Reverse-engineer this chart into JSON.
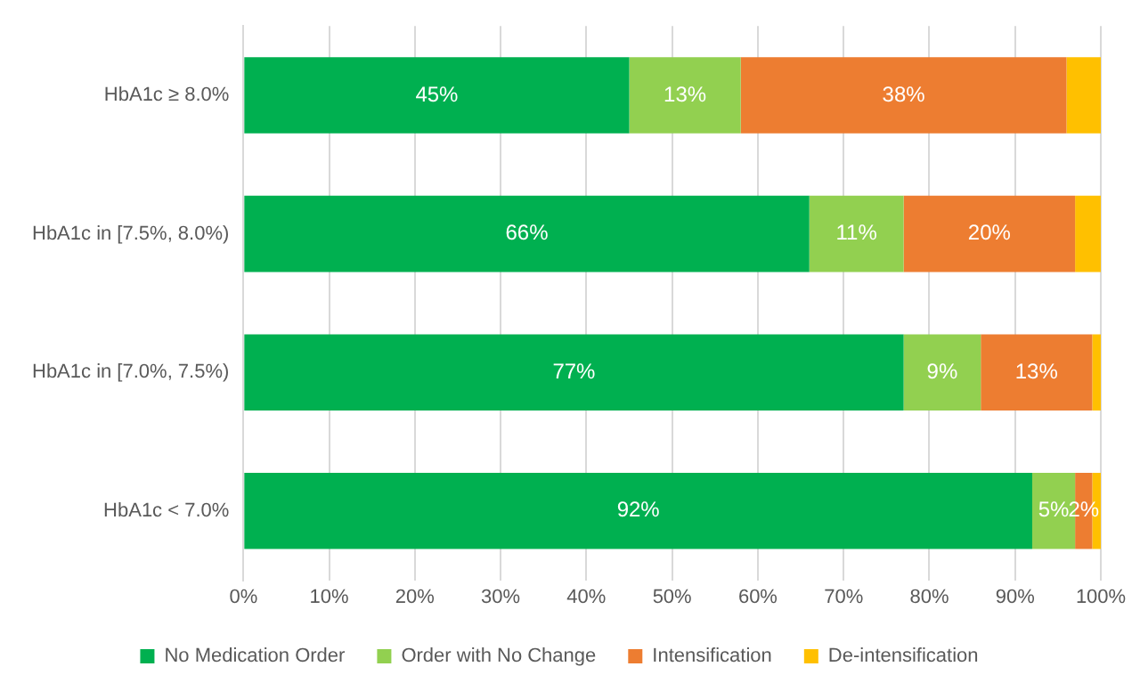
{
  "chart_data": {
    "type": "bar",
    "orientation": "horizontal",
    "stacked": true,
    "categories": [
      "HbA1c ≥ 8.0%",
      "HbA1c in [7.5%, 8.0%)",
      "HbA1c in [7.0%, 7.5%)",
      "HbA1c < 7.0%"
    ],
    "series": [
      {
        "name": "No Medication Order",
        "color": "#00b050",
        "values": [
          45,
          66,
          77,
          92
        ],
        "value_labels": [
          "45%",
          "66%",
          "77%",
          "92%"
        ]
      },
      {
        "name": "Order with No Change",
        "color": "#92d050",
        "values": [
          13,
          11,
          9,
          5
        ],
        "value_labels": [
          "13%",
          "11%",
          "9%",
          "5%"
        ]
      },
      {
        "name": "Intensification",
        "color": "#ed7d31",
        "values": [
          38,
          20,
          13,
          2
        ],
        "value_labels": [
          "38%",
          "20%",
          "13%",
          "2%"
        ]
      },
      {
        "name": "De-intensification",
        "color": "#ffc000",
        "values": [
          4,
          3,
          1,
          1
        ],
        "value_labels": [
          null,
          null,
          null,
          null
        ]
      }
    ],
    "xlim": [
      0,
      100
    ],
    "xticks": [
      {
        "value": 0,
        "label": "0%"
      },
      {
        "value": 10,
        "label": "10%"
      },
      {
        "value": 20,
        "label": "20%"
      },
      {
        "value": 30,
        "label": "30%"
      },
      {
        "value": 40,
        "label": "40%"
      },
      {
        "value": 50,
        "label": "50%"
      },
      {
        "value": 60,
        "label": "60%"
      },
      {
        "value": 70,
        "label": "70%"
      },
      {
        "value": 80,
        "label": "80%"
      },
      {
        "value": 90,
        "label": "90%"
      },
      {
        "value": 100,
        "label": "100%"
      }
    ],
    "grid": "x",
    "legend": "bottom"
  }
}
